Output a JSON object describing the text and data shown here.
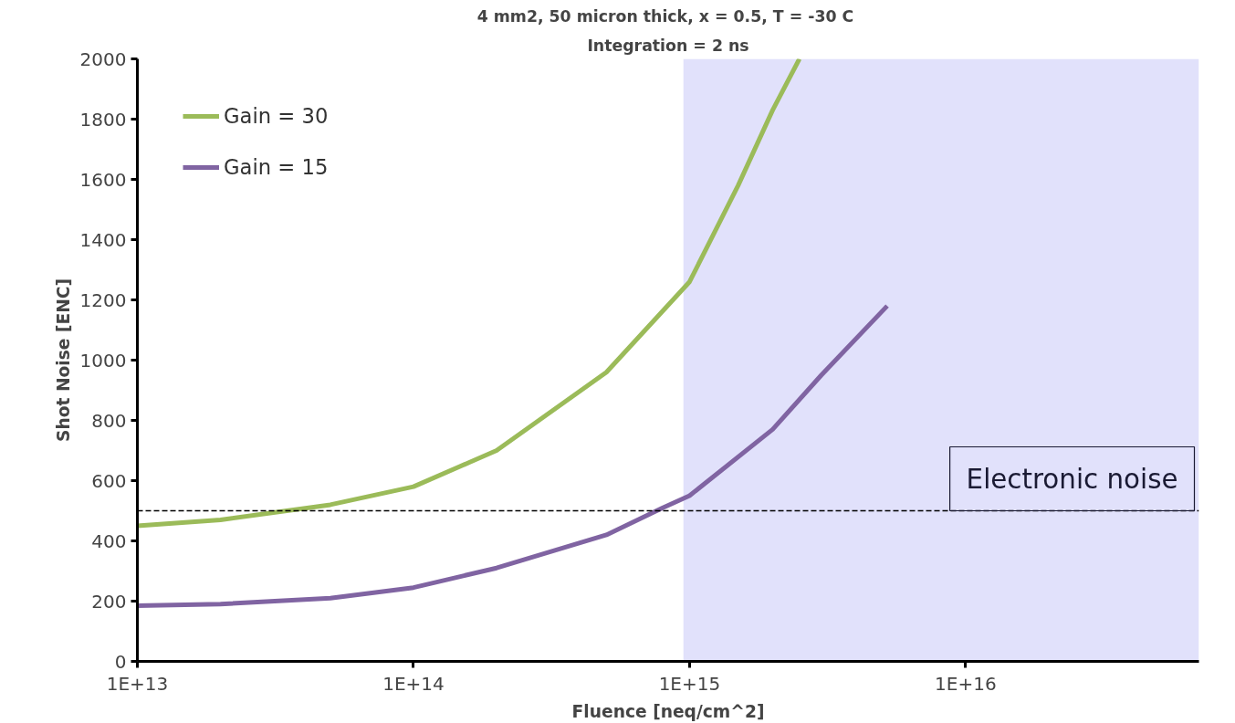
{
  "chart_data": {
    "type": "line",
    "title": "4 mm2, 50 micron thick,  x = 0.5, T = -30 C",
    "subtitle": "Integration = 2 ns",
    "xlabel": "Fluence [neq/cm^2]",
    "ylabel": "Shot Noise [ENC]",
    "log": "x",
    "xlim": [
      10000000000000.0,
      7e+16
    ],
    "xticks": [
      {
        "value": 10000000000000.0,
        "label": "1E+13"
      },
      {
        "value": 100000000000000.0,
        "label": "1E+14"
      },
      {
        "value": 1000000000000000.0,
        "label": "1E+15"
      },
      {
        "value": 1e+16,
        "label": "1E+16"
      }
    ],
    "ylim": [
      0,
      2000
    ],
    "yticks": [
      0,
      200,
      400,
      600,
      800,
      1000,
      1200,
      1400,
      1600,
      1800,
      2000
    ],
    "grid": false,
    "legend": "top left",
    "series": [
      {
        "name": "Gain = 30",
        "color": "#9bbb59",
        "x": [
          10000000000000.0,
          20000000000000.0,
          50000000000000.0,
          100000000000000.0,
          200000000000000.0,
          500000000000000.0,
          1000000000000000.0,
          1500000000000000.0,
          2000000000000000.0,
          2500000000000000.0
        ],
        "values": [
          450,
          470,
          520,
          580,
          700,
          960,
          1260,
          1580,
          1830,
          2000
        ]
      },
      {
        "name": "Gain = 15",
        "color": "#8064a2",
        "x": [
          10000000000000.0,
          20000000000000.0,
          50000000000000.0,
          100000000000000.0,
          200000000000000.0,
          500000000000000.0,
          800000000000000.0,
          1000000000000000.0,
          2000000000000000.0,
          3000000000000000.0,
          5200000000000000.0
        ],
        "values": [
          185,
          190,
          210,
          245,
          310,
          420,
          510,
          550,
          770,
          950,
          1180
        ]
      }
    ],
    "ref_lines": [
      {
        "axis": "y",
        "value": 500,
        "label": "Electronic noise",
        "color": "#000000",
        "line_style": "dashed"
      }
    ],
    "bands": [
      {
        "axis": "x",
        "from": 950000000000000.0,
        "to": 7e+16,
        "color": "#e1e1fb"
      }
    ]
  }
}
